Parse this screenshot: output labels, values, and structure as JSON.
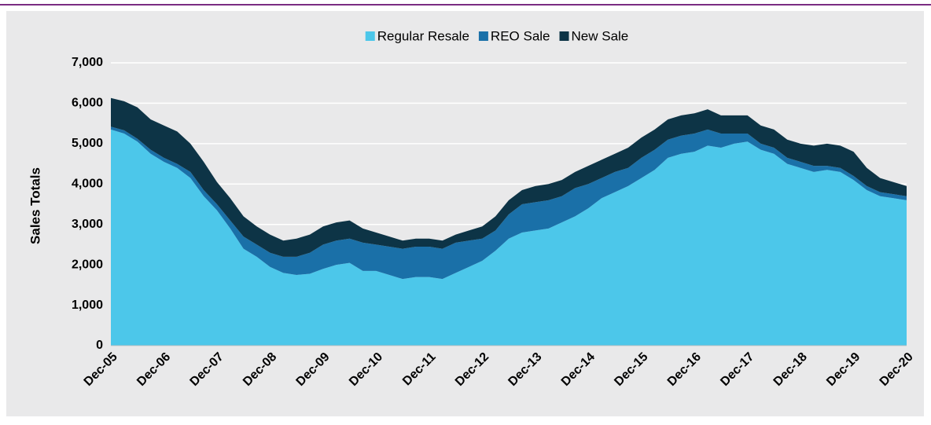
{
  "chart_data": {
    "type": "stacked_area",
    "y_label": "Sales Totals",
    "categories": [
      "Dec-05",
      null,
      null,
      null,
      "Dec-06",
      null,
      null,
      null,
      "Dec-07",
      null,
      null,
      null,
      "Dec-08",
      null,
      null,
      null,
      "Dec-09",
      null,
      null,
      null,
      "Dec-10",
      null,
      null,
      null,
      "Dec-11",
      null,
      null,
      null,
      "Dec-12",
      null,
      null,
      null,
      "Dec-13",
      null,
      null,
      null,
      "Dec-14",
      null,
      null,
      null,
      "Dec-15",
      null,
      null,
      null,
      "Dec-16",
      null,
      null,
      null,
      "Dec-17",
      null,
      null,
      null,
      "Dec-18",
      null,
      null,
      null,
      "Dec-19",
      null,
      null,
      null,
      "Dec-20"
    ],
    "series": [
      {
        "name": "Regular Resale",
        "color": "#4cc7ea",
        "values": [
          5350,
          5250,
          5050,
          4750,
          4550,
          4400,
          4150,
          3700,
          3350,
          2900,
          2400,
          2200,
          1950,
          1800,
          1750,
          1780,
          1900,
          2000,
          2050,
          1850,
          1850,
          1750,
          1650,
          1700,
          1700,
          1650,
          1800,
          1950,
          2100,
          2350,
          2650,
          2800,
          2850,
          2900,
          3050,
          3200,
          3400,
          3650,
          3800,
          3950,
          4150,
          4350,
          4650,
          4750,
          4800,
          4950,
          4900,
          5000,
          5050,
          4850,
          4750,
          4500,
          4400,
          4300,
          4350,
          4300,
          4100,
          3850,
          3700,
          3650,
          3600
        ]
      },
      {
        "name": "REO Sale",
        "color": "#1a70a8",
        "values": [
          70,
          80,
          70,
          100,
          100,
          100,
          150,
          150,
          150,
          200,
          300,
          300,
          350,
          400,
          450,
          520,
          600,
          600,
          600,
          700,
          650,
          700,
          750,
          750,
          750,
          750,
          750,
          650,
          550,
          500,
          600,
          700,
          700,
          700,
          650,
          700,
          600,
          500,
          500,
          450,
          500,
          500,
          450,
          450,
          450,
          400,
          350,
          250,
          200,
          150,
          150,
          150,
          150,
          150,
          100,
          100,
          100,
          100,
          100,
          100,
          100
        ]
      },
      {
        "name": "New Sale",
        "color": "#0d3446",
        "values": [
          710,
          720,
          780,
          750,
          800,
          800,
          700,
          700,
          550,
          550,
          500,
          450,
          450,
          400,
          450,
          450,
          450,
          450,
          450,
          350,
          300,
          250,
          200,
          200,
          200,
          200,
          200,
          250,
          300,
          350,
          350,
          350,
          400,
          400,
          400,
          400,
          450,
          450,
          450,
          500,
          500,
          500,
          500,
          500,
          500,
          500,
          450,
          450,
          450,
          450,
          450,
          450,
          450,
          500,
          550,
          550,
          600,
          450,
          350,
          300,
          250
        ]
      }
    ],
    "ylim": [
      0,
      7000
    ],
    "yticks": [
      0,
      {
        "value": 1000,
        "label": "1,000"
      },
      {
        "value": 2000,
        "label": "2,000"
      },
      {
        "value": 3000,
        "label": "3,000"
      },
      {
        "value": 4000,
        "label": "4,000"
      },
      {
        "value": 5000,
        "label": "5,000"
      },
      {
        "value": 6000,
        "label": "6,000"
      },
      {
        "value": 7000,
        "label": "7,000"
      }
    ],
    "grid": true,
    "legend": "top"
  }
}
